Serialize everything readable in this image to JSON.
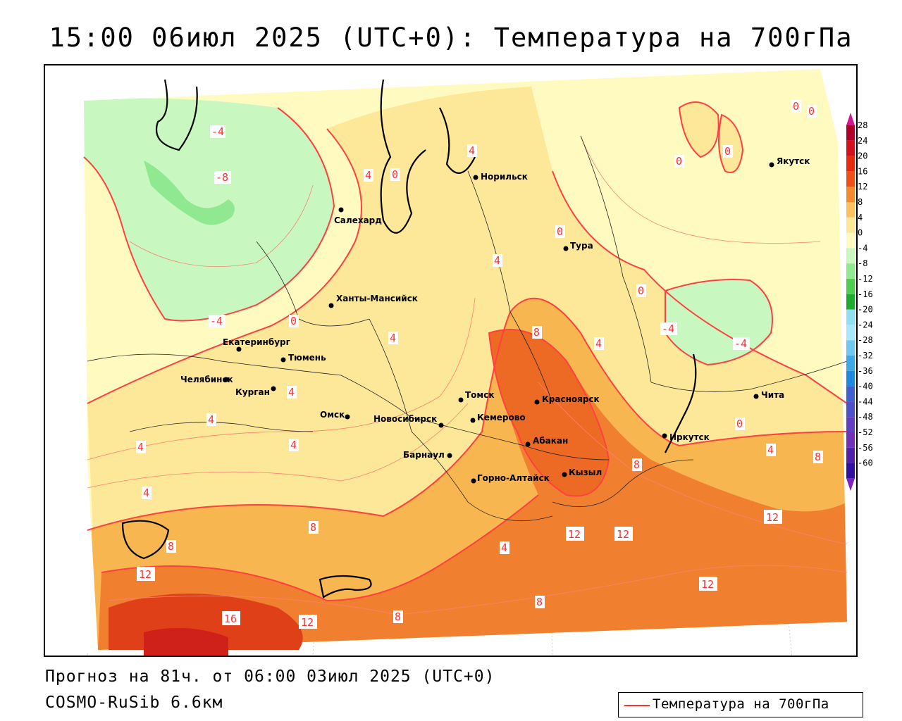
{
  "title": "15:00 06июл 2025 (UTC+0): Температура на 700гПа",
  "footer": {
    "forecast": "Прогноз на 81ч. от 06:00 03июл 2025 (UTC+0)",
    "model": "COSMO-RuSib 6.6км"
  },
  "legend": {
    "label": "Температура на 700гПа",
    "line_color": "#ff3030"
  },
  "colorbar": {
    "ticks": [
      "28",
      "24",
      "20",
      "16",
      "12",
      "8",
      "4",
      "0",
      "-4",
      "-8",
      "-12",
      "-16",
      "-20",
      "-24",
      "-28",
      "-32",
      "-36",
      "-40",
      "-44",
      "-48",
      "-52",
      "-56",
      "-60"
    ],
    "colors": [
      "#b0002a",
      "#d4101a",
      "#e82a10",
      "#f05018",
      "#f58a30",
      "#fbc060",
      "#fde798",
      "#fffac0",
      "#c8f8c0",
      "#90e890",
      "#50cc50",
      "#20aa30",
      "#90e0f0",
      "#a8e8f8",
      "#70c8f0",
      "#40a8e8",
      "#2088e0",
      "#4060d0",
      "#5050c8",
      "#6040c0",
      "#7030b8",
      "#5020a8",
      "#3010a0"
    ],
    "top_arrow_color": "#d01890",
    "bottom_arrow_color": "#8020c0"
  },
  "cities": [
    {
      "name": "Норильск"
    },
    {
      "name": "Якутск"
    },
    {
      "name": "Салехард"
    },
    {
      "name": "Тура"
    },
    {
      "name": "Ханты-Мансийск"
    },
    {
      "name": "Екатеринбург"
    },
    {
      "name": "Тюмень"
    },
    {
      "name": "Челябинск"
    },
    {
      "name": "Курган"
    },
    {
      "name": "Омск"
    },
    {
      "name": "Томск"
    },
    {
      "name": "Новосибирск"
    },
    {
      "name": "Кемерово"
    },
    {
      "name": "Красноярск"
    },
    {
      "name": "Абакан"
    },
    {
      "name": "Барнаул"
    },
    {
      "name": "Горно-Алтайск"
    },
    {
      "name": "Кызыл"
    },
    {
      "name": "Иркутск"
    },
    {
      "name": "Чита"
    }
  ],
  "contour_labels": [
    "-4",
    "-8",
    "4",
    "0",
    "4",
    "0",
    "0",
    "0",
    "0",
    "0",
    "4",
    "0",
    "-4",
    "-4",
    "4",
    "8",
    "4",
    "0",
    "4",
    "4",
    "4",
    "4",
    "8",
    "8",
    "12",
    "12",
    "12",
    "16",
    "12",
    "8",
    "4",
    "8",
    "12",
    "12",
    "8",
    "0",
    "4",
    "8",
    "4",
    "-4"
  ]
}
